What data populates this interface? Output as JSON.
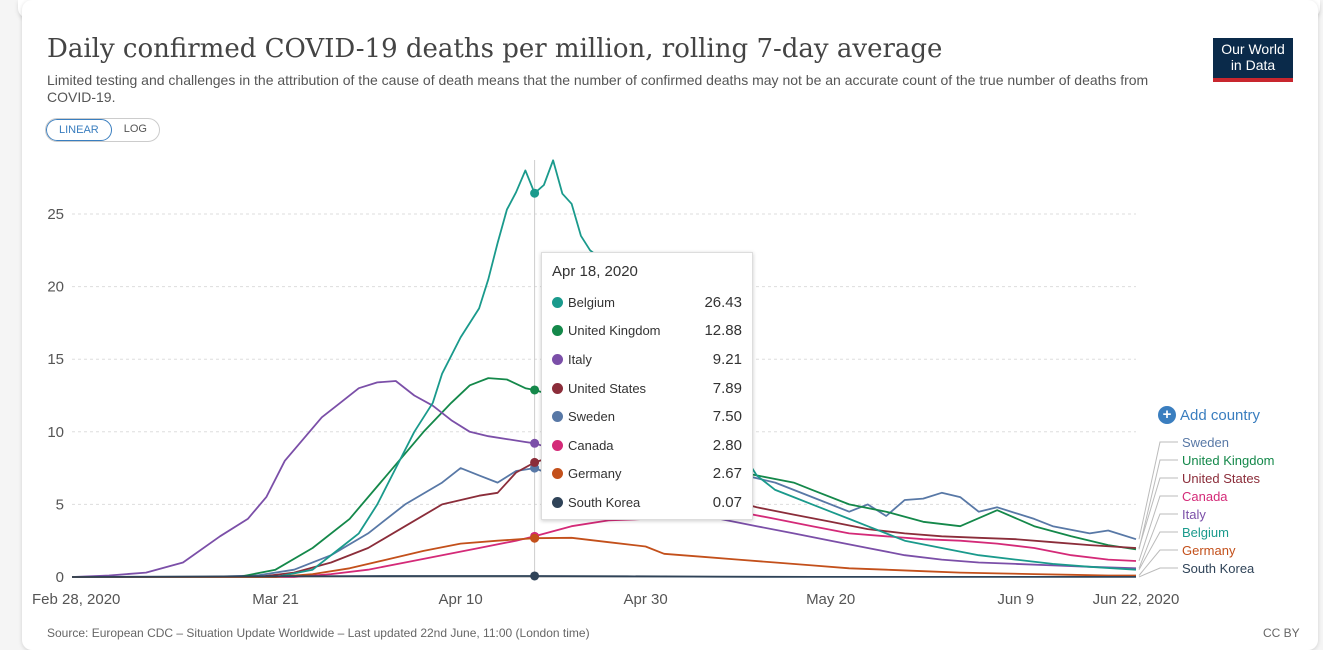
{
  "header": {
    "title": "Daily confirmed COVID-19 deaths per million, rolling 7-day average",
    "subtitle": "Limited testing and challenges in the attribution of the cause of death means that the number of confirmed deaths may not be an accurate count of the true number of deaths from COVID-19.",
    "logo_line1": "Our World",
    "logo_line2": "in Data"
  },
  "scale_toggle": {
    "linear": "LINEAR",
    "log": "LOG",
    "active": "LINEAR"
  },
  "add_country": "Add country",
  "tooltip": {
    "date": "Apr 18, 2020",
    "rows": [
      {
        "name": "Belgium",
        "value": "26.43",
        "color": "#1a9a8c"
      },
      {
        "name": "United Kingdom",
        "value": "12.88",
        "color": "#14884a"
      },
      {
        "name": "Italy",
        "value": "9.21",
        "color": "#7b4fa8"
      },
      {
        "name": "United States",
        "value": "7.89",
        "color": "#8b2d3a"
      },
      {
        "name": "Sweden",
        "value": "7.50",
        "color": "#5878a6"
      },
      {
        "name": "Canada",
        "value": "2.80",
        "color": "#d42a78"
      },
      {
        "name": "Germany",
        "value": "2.67",
        "color": "#c3501b"
      },
      {
        "name": "South Korea",
        "value": "0.07",
        "color": "#2f4358"
      }
    ]
  },
  "footer": {
    "source": "Source: European CDC – Situation Update Worldwide – Last updated 22nd June, 11:00 (London time)",
    "license": "CC BY"
  },
  "chart_data": {
    "type": "line",
    "title": "Daily confirmed COVID-19 deaths per million, rolling 7-day average",
    "xlabel": "",
    "ylabel": "",
    "x_start": "2020-02-28",
    "x_end": "2020-06-22",
    "x_ticks": [
      {
        "day": 0,
        "label": "Feb 28, 2020"
      },
      {
        "day": 22,
        "label": "Mar 21"
      },
      {
        "day": 42,
        "label": "Apr 10"
      },
      {
        "day": 62,
        "label": "Apr 30"
      },
      {
        "day": 82,
        "label": "May 20"
      },
      {
        "day": 102,
        "label": "Jun 9"
      },
      {
        "day": 115,
        "label": "Jun 22, 2020"
      }
    ],
    "ylim": [
      0,
      29
    ],
    "y_ticks": [
      0,
      5,
      10,
      15,
      20,
      25
    ],
    "grid": "horizontal-dashed",
    "highlight_day": 50,
    "series": [
      {
        "name": "Sweden",
        "color": "#5878a6",
        "points": [
          [
            0,
            0
          ],
          [
            14,
            0
          ],
          [
            20,
            0.1
          ],
          [
            24,
            0.5
          ],
          [
            28,
            1.5
          ],
          [
            32,
            3
          ],
          [
            36,
            5
          ],
          [
            40,
            6.5
          ],
          [
            42,
            7.5
          ],
          [
            44,
            7
          ],
          [
            46,
            6.5
          ],
          [
            48,
            7.3
          ],
          [
            50,
            7.5
          ],
          [
            54,
            6.5
          ],
          [
            58,
            6.2
          ],
          [
            62,
            6
          ],
          [
            66,
            6.5
          ],
          [
            70,
            7
          ],
          [
            72,
            7.1
          ],
          [
            76,
            6.5
          ],
          [
            80,
            5.5
          ],
          [
            84,
            4.5
          ],
          [
            86,
            5
          ],
          [
            88,
            4.2
          ],
          [
            90,
            5.3
          ],
          [
            92,
            5.4
          ],
          [
            94,
            5.8
          ],
          [
            96,
            5.5
          ],
          [
            98,
            4.5
          ],
          [
            100,
            4.8
          ],
          [
            104,
            4
          ],
          [
            106,
            3.5
          ],
          [
            110,
            3
          ],
          [
            112,
            3.2
          ],
          [
            115,
            2.6
          ]
        ]
      },
      {
        "name": "United Kingdom",
        "color": "#14884a",
        "points": [
          [
            0,
            0
          ],
          [
            18,
            0
          ],
          [
            22,
            0.5
          ],
          [
            26,
            2
          ],
          [
            30,
            4
          ],
          [
            34,
            7
          ],
          [
            38,
            10
          ],
          [
            41,
            12
          ],
          [
            43,
            13.2
          ],
          [
            45,
            13.7
          ],
          [
            47,
            13.6
          ],
          [
            49,
            13
          ],
          [
            50,
            12.88
          ],
          [
            52,
            12.5
          ],
          [
            54,
            11.5
          ],
          [
            56,
            10.5
          ],
          [
            58,
            10
          ],
          [
            60,
            9.5
          ],
          [
            62,
            9
          ],
          [
            64,
            8.5
          ],
          [
            66,
            8
          ],
          [
            70,
            7.5
          ],
          [
            74,
            7
          ],
          [
            78,
            6.5
          ],
          [
            80,
            6
          ],
          [
            84,
            5
          ],
          [
            88,
            4.5
          ],
          [
            92,
            3.8
          ],
          [
            96,
            3.5
          ],
          [
            100,
            4.6
          ],
          [
            104,
            3.5
          ],
          [
            108,
            2.8
          ],
          [
            112,
            2.2
          ],
          [
            115,
            1.9
          ]
        ]
      },
      {
        "name": "United States",
        "color": "#8b2d3a",
        "points": [
          [
            0,
            0
          ],
          [
            20,
            0
          ],
          [
            24,
            0.3
          ],
          [
            28,
            1
          ],
          [
            32,
            2
          ],
          [
            36,
            3.5
          ],
          [
            40,
            5
          ],
          [
            44,
            5.6
          ],
          [
            46,
            5.8
          ],
          [
            48,
            7.2
          ],
          [
            50,
            7.89
          ],
          [
            52,
            8.3
          ],
          [
            54,
            7.8
          ],
          [
            56,
            7.6
          ],
          [
            58,
            7
          ],
          [
            62,
            6.5
          ],
          [
            66,
            6
          ],
          [
            70,
            5.5
          ],
          [
            74,
            4.8
          ],
          [
            78,
            4.3
          ],
          [
            82,
            3.8
          ],
          [
            86,
            3.3
          ],
          [
            90,
            3
          ],
          [
            94,
            2.8
          ],
          [
            98,
            2.7
          ],
          [
            102,
            2.6
          ],
          [
            106,
            2.4
          ],
          [
            110,
            2.2
          ],
          [
            115,
            2
          ]
        ]
      },
      {
        "name": "Canada",
        "color": "#d42a78",
        "points": [
          [
            0,
            0
          ],
          [
            24,
            0
          ],
          [
            28,
            0.2
          ],
          [
            32,
            0.5
          ],
          [
            36,
            1
          ],
          [
            40,
            1.5
          ],
          [
            44,
            2
          ],
          [
            48,
            2.5
          ],
          [
            50,
            2.8
          ],
          [
            54,
            3.5
          ],
          [
            58,
            3.9
          ],
          [
            62,
            4
          ],
          [
            66,
            4.1
          ],
          [
            70,
            4.3
          ],
          [
            72,
            4.5
          ],
          [
            76,
            4
          ],
          [
            80,
            3.5
          ],
          [
            84,
            3
          ],
          [
            88,
            2.8
          ],
          [
            92,
            2.6
          ],
          [
            96,
            2.5
          ],
          [
            100,
            2.3
          ],
          [
            104,
            2
          ],
          [
            108,
            1.5
          ],
          [
            112,
            1.2
          ],
          [
            115,
            1.1
          ]
        ]
      },
      {
        "name": "Italy",
        "color": "#7b4fa8",
        "points": [
          [
            0,
            0
          ],
          [
            4,
            0.1
          ],
          [
            8,
            0.3
          ],
          [
            12,
            1
          ],
          [
            16,
            2.8
          ],
          [
            19,
            4
          ],
          [
            21,
            5.5
          ],
          [
            23,
            8
          ],
          [
            25,
            9.5
          ],
          [
            27,
            11
          ],
          [
            29,
            12
          ],
          [
            31,
            13
          ],
          [
            33,
            13.4
          ],
          [
            35,
            13.5
          ],
          [
            37,
            12.5
          ],
          [
            39,
            11.8
          ],
          [
            41,
            10.8
          ],
          [
            43,
            10
          ],
          [
            45,
            9.7
          ],
          [
            47,
            9.5
          ],
          [
            49,
            9.3
          ],
          [
            50,
            9.21
          ],
          [
            52,
            8.8
          ],
          [
            54,
            8.3
          ],
          [
            56,
            7.5
          ],
          [
            58,
            7
          ],
          [
            62,
            6.3
          ],
          [
            66,
            5
          ],
          [
            70,
            4
          ],
          [
            74,
            3.5
          ],
          [
            78,
            3
          ],
          [
            82,
            2.5
          ],
          [
            86,
            2
          ],
          [
            90,
            1.5
          ],
          [
            94,
            1.2
          ],
          [
            98,
            1
          ],
          [
            102,
            0.9
          ],
          [
            106,
            0.8
          ],
          [
            110,
            0.7
          ],
          [
            115,
            0.6
          ]
        ]
      },
      {
        "name": "Belgium",
        "color": "#1a9a8c",
        "points": [
          [
            0,
            0
          ],
          [
            22,
            0
          ],
          [
            26,
            0.5
          ],
          [
            29,
            2
          ],
          [
            31,
            3
          ],
          [
            33,
            5
          ],
          [
            35,
            7.5
          ],
          [
            37,
            10
          ],
          [
            39,
            12
          ],
          [
            40,
            14
          ],
          [
            42,
            16.5
          ],
          [
            44,
            18.5
          ],
          [
            45,
            20.5
          ],
          [
            46,
            23
          ],
          [
            47,
            25.3
          ],
          [
            48,
            26.5
          ],
          [
            49,
            28
          ],
          [
            50,
            26.43
          ],
          [
            51,
            27
          ],
          [
            52,
            28.7
          ],
          [
            53,
            26.4
          ],
          [
            54,
            25.7
          ],
          [
            55,
            23.5
          ],
          [
            56,
            22.5
          ],
          [
            57,
            22
          ],
          [
            58,
            21
          ],
          [
            60,
            19
          ],
          [
            62,
            16
          ],
          [
            64,
            14
          ],
          [
            66,
            12
          ],
          [
            68,
            10.5
          ],
          [
            70,
            10
          ],
          [
            72,
            9
          ],
          [
            74,
            7
          ],
          [
            76,
            6
          ],
          [
            78,
            5.5
          ],
          [
            80,
            5
          ],
          [
            82,
            4.5
          ],
          [
            84,
            4
          ],
          [
            86,
            3.5
          ],
          [
            88,
            3
          ],
          [
            90,
            2.5
          ],
          [
            94,
            2
          ],
          [
            98,
            1.5
          ],
          [
            102,
            1.2
          ],
          [
            106,
            0.9
          ],
          [
            110,
            0.7
          ],
          [
            115,
            0.5
          ]
        ]
      },
      {
        "name": "Germany",
        "color": "#c3501b",
        "points": [
          [
            0,
            0
          ],
          [
            22,
            0
          ],
          [
            26,
            0.2
          ],
          [
            30,
            0.6
          ],
          [
            34,
            1.2
          ],
          [
            38,
            1.8
          ],
          [
            42,
            2.3
          ],
          [
            46,
            2.5
          ],
          [
            50,
            2.67
          ],
          [
            54,
            2.7
          ],
          [
            58,
            2.4
          ],
          [
            62,
            2.1
          ],
          [
            64,
            1.6
          ],
          [
            68,
            1.4
          ],
          [
            72,
            1.2
          ],
          [
            76,
            1
          ],
          [
            80,
            0.8
          ],
          [
            84,
            0.6
          ],
          [
            88,
            0.5
          ],
          [
            92,
            0.4
          ],
          [
            96,
            0.3
          ],
          [
            100,
            0.25
          ],
          [
            104,
            0.2
          ],
          [
            108,
            0.15
          ],
          [
            112,
            0.1
          ],
          [
            115,
            0.1
          ]
        ]
      },
      {
        "name": "South Korea",
        "color": "#2f4358",
        "points": [
          [
            0,
            0
          ],
          [
            10,
            0.02
          ],
          [
            20,
            0.05
          ],
          [
            30,
            0.06
          ],
          [
            40,
            0.07
          ],
          [
            50,
            0.07
          ],
          [
            60,
            0.05
          ],
          [
            70,
            0.02
          ],
          [
            80,
            0.01
          ],
          [
            90,
            0.01
          ],
          [
            100,
            0.01
          ],
          [
            115,
            0.01
          ]
        ]
      }
    ],
    "legend_order": [
      {
        "name": "Sweden",
        "color": "#5878a6"
      },
      {
        "name": "United Kingdom",
        "color": "#14884a"
      },
      {
        "name": "United States",
        "color": "#8b2d3a"
      },
      {
        "name": "Canada",
        "color": "#d42a78"
      },
      {
        "name": "Italy",
        "color": "#7b4fa8"
      },
      {
        "name": "Belgium",
        "color": "#1a9a8c"
      },
      {
        "name": "Germany",
        "color": "#c3501b"
      },
      {
        "name": "South Korea",
        "color": "#2f4358"
      }
    ],
    "legend_placement": "right"
  }
}
